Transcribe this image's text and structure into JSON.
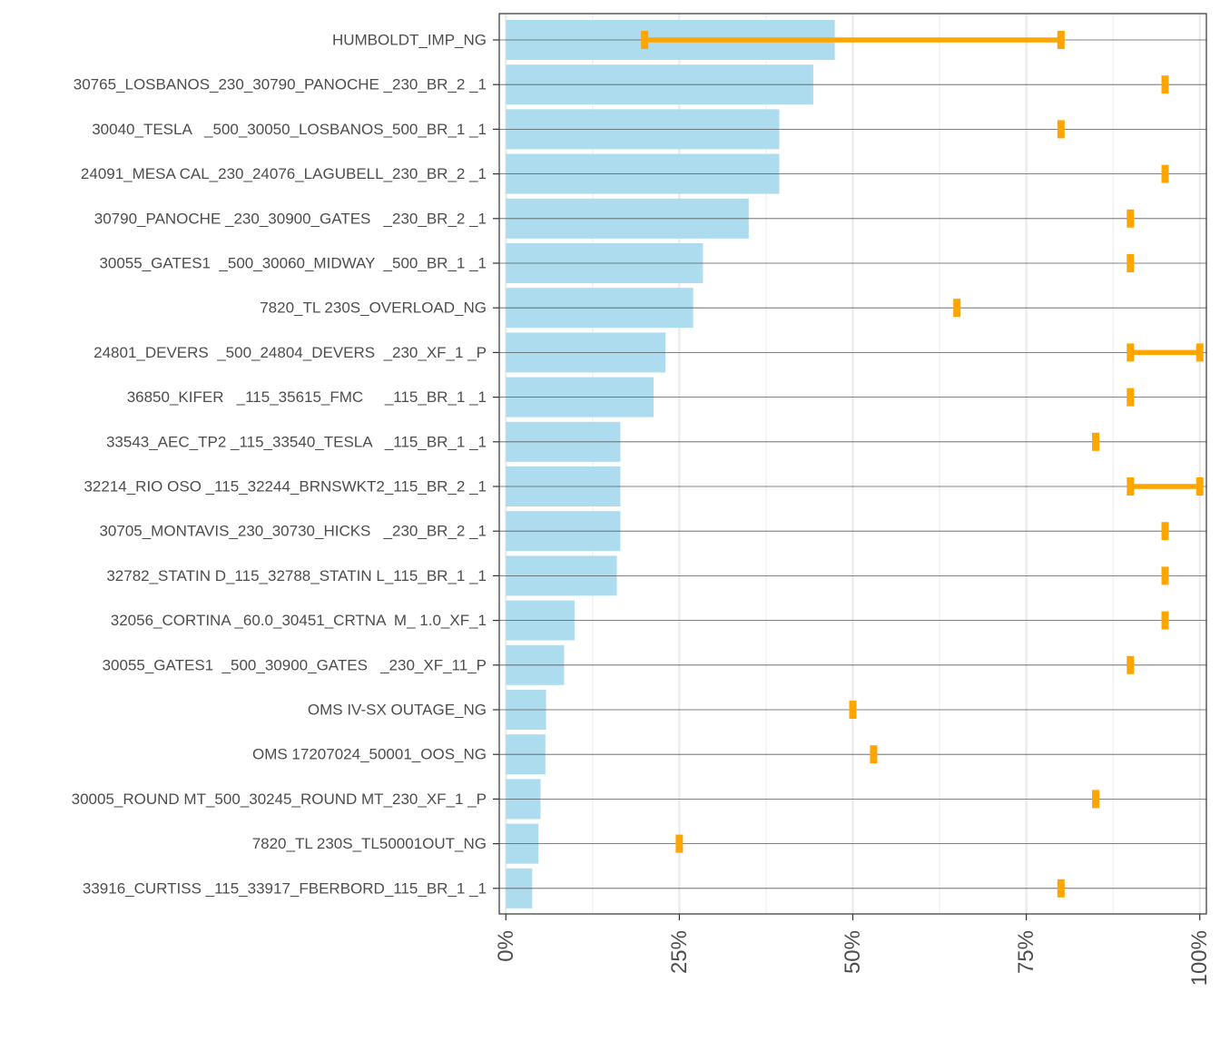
{
  "chart_data": {
    "type": "bar",
    "orientation": "horizontal",
    "title": "",
    "xlabel": "",
    "ylabel": "",
    "xlim": [
      -0.0095,
      1.0095
    ],
    "x_ticks": [
      0,
      0.25,
      0.5,
      0.75,
      1.0
    ],
    "x_tick_labels": [
      "0%",
      "25%",
      "50%",
      "75%",
      "100%"
    ],
    "grid": true,
    "legend": "none",
    "colors": {
      "bar": "#ADDCEF",
      "range": "#FFA500",
      "panel_border": "#333333",
      "major_grid": "#EBEBEB",
      "row_line": "#5A5A5A",
      "tick_text": "#4D4D4D"
    },
    "categories": [
      "HUMBOLDT_IMP_NG",
      "30765_LOSBANOS_230_30790_PANOCHE _230_BR_2 _1",
      "30040_TESLA   _500_30050_LOSBANOS_500_BR_1 _1",
      "24091_MESA CAL_230_24076_LAGUBELL_230_BR_2 _1",
      "30790_PANOCHE _230_30900_GATES   _230_BR_2 _1",
      "30055_GATES1  _500_30060_MIDWAY  _500_BR_1 _1",
      "7820_TL 230S_OVERLOAD_NG",
      "24801_DEVERS  _500_24804_DEVERS  _230_XF_1 _P",
      "36850_KIFER   _115_35615_FMC     _115_BR_1 _1",
      "33543_AEC_TP2 _115_33540_TESLA   _115_BR_1 _1",
      "32214_RIO OSO _115_32244_BRNSWKT2_115_BR_2 _1",
      "30705_MONTAVIS_230_30730_HICKS   _230_BR_2 _1",
      "32782_STATIN D_115_32788_STATIN L_115_BR_1 _1",
      "32056_CORTINA _60.0_30451_CRTNA  M_ 1.0_XF_1",
      "30055_GATES1  _500_30900_GATES   _230_XF_11_P",
      "OMS IV-SX OUTAGE_NG",
      "OMS 17207024_50001_OOS_NG",
      "30005_ROUND MT_500_30245_ROUND MT_230_XF_1 _P",
      "7820_TL 230S_TL50001OUT_NG",
      "33916_CURTISS _115_33917_FBERBORD_115_BR_1 _1"
    ],
    "series": [
      {
        "name": "share",
        "mark": "bar",
        "values": [
          0.474,
          0.443,
          0.394,
          0.394,
          0.35,
          0.284,
          0.27,
          0.23,
          0.213,
          0.165,
          0.165,
          0.165,
          0.16,
          0.099,
          0.084,
          0.058,
          0.057,
          0.05,
          0.047,
          0.038
        ]
      },
      {
        "name": "range",
        "mark": "errorbar",
        "low": [
          0.2,
          0.95,
          0.8,
          0.95,
          0.9,
          0.9,
          0.65,
          0.9,
          0.9,
          0.85,
          0.9,
          0.95,
          0.95,
          0.95,
          0.9,
          0.5,
          0.53,
          0.85,
          0.25,
          0.8
        ],
        "high": [
          0.8,
          0.95,
          0.8,
          0.95,
          0.9,
          0.9,
          0.65,
          1.0,
          0.9,
          0.85,
          1.0,
          0.95,
          0.95,
          0.95,
          0.9,
          0.5,
          0.53,
          0.85,
          0.25,
          0.8
        ]
      }
    ]
  }
}
